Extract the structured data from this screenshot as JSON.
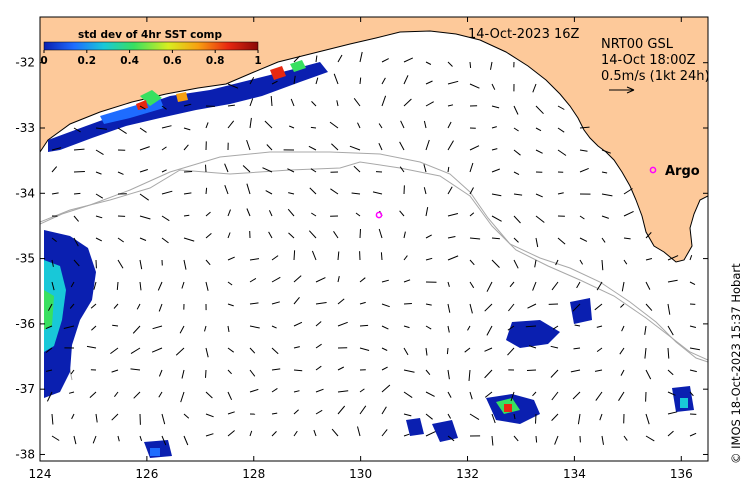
{
  "map": {
    "colorbar": {
      "title": "std dev of 4hr SST comp",
      "tick_labels": [
        "0",
        "0.2",
        "0.4",
        "0.6",
        "0.8",
        "1"
      ],
      "colors": [
        "#0a1fb0",
        "#1e6cff",
        "#18c8d8",
        "#38e060",
        "#d8ee20",
        "#f8a010",
        "#e82810",
        "#8a0808"
      ]
    },
    "date_label": "14-Oct-2023 16Z",
    "product": {
      "line1": "NRT00 GSL",
      "line2": "14-Oct 18:00Z",
      "scale_label": "0.5m/s (1kt 24h)"
    },
    "argo_label": "Argo",
    "credit": "© IMOS 18-Oct-2023 15:37 Hobart",
    "x_axis": {
      "ticks": [
        124,
        126,
        128,
        130,
        132,
        134,
        136
      ]
    },
    "y_axis": {
      "ticks": [
        -32,
        -33,
        -34,
        -35,
        -36,
        -37,
        -38
      ]
    },
    "colors": {
      "land": "#fdc99a",
      "argo": "#ff00ff",
      "isobath": "#a8a8a8"
    }
  }
}
